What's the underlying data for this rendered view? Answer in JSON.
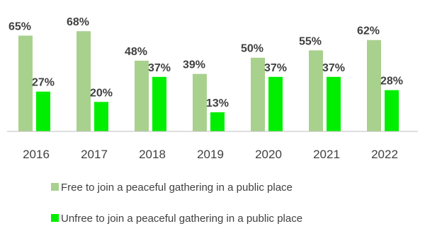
{
  "chart_data": {
    "type": "bar",
    "categories": [
      "2016",
      "2017",
      "2018",
      "2019",
      "2020",
      "2021",
      "2022"
    ],
    "series": [
      {
        "name": "Free to join a peaceful gathering in a public place",
        "values": [
          65,
          68,
          48,
          39,
          50,
          55,
          62
        ],
        "labels": [
          "65%",
          "68%",
          "48%",
          "39%",
          "50%",
          "55%",
          "62%"
        ],
        "color": "#a9d18e"
      },
      {
        "name": "Unfree to join a peaceful gathering in a public place",
        "values": [
          27,
          20,
          37,
          13,
          37,
          37,
          28
        ],
        "labels": [
          "27%",
          "20%",
          "37%",
          "13%",
          "37%",
          "37%",
          "28%"
        ],
        "color": "#00ee00"
      }
    ],
    "ylim": [
      0,
      70
    ],
    "grid": false,
    "legend_position": "bottom",
    "axis_color": "#bfbfbf"
  }
}
